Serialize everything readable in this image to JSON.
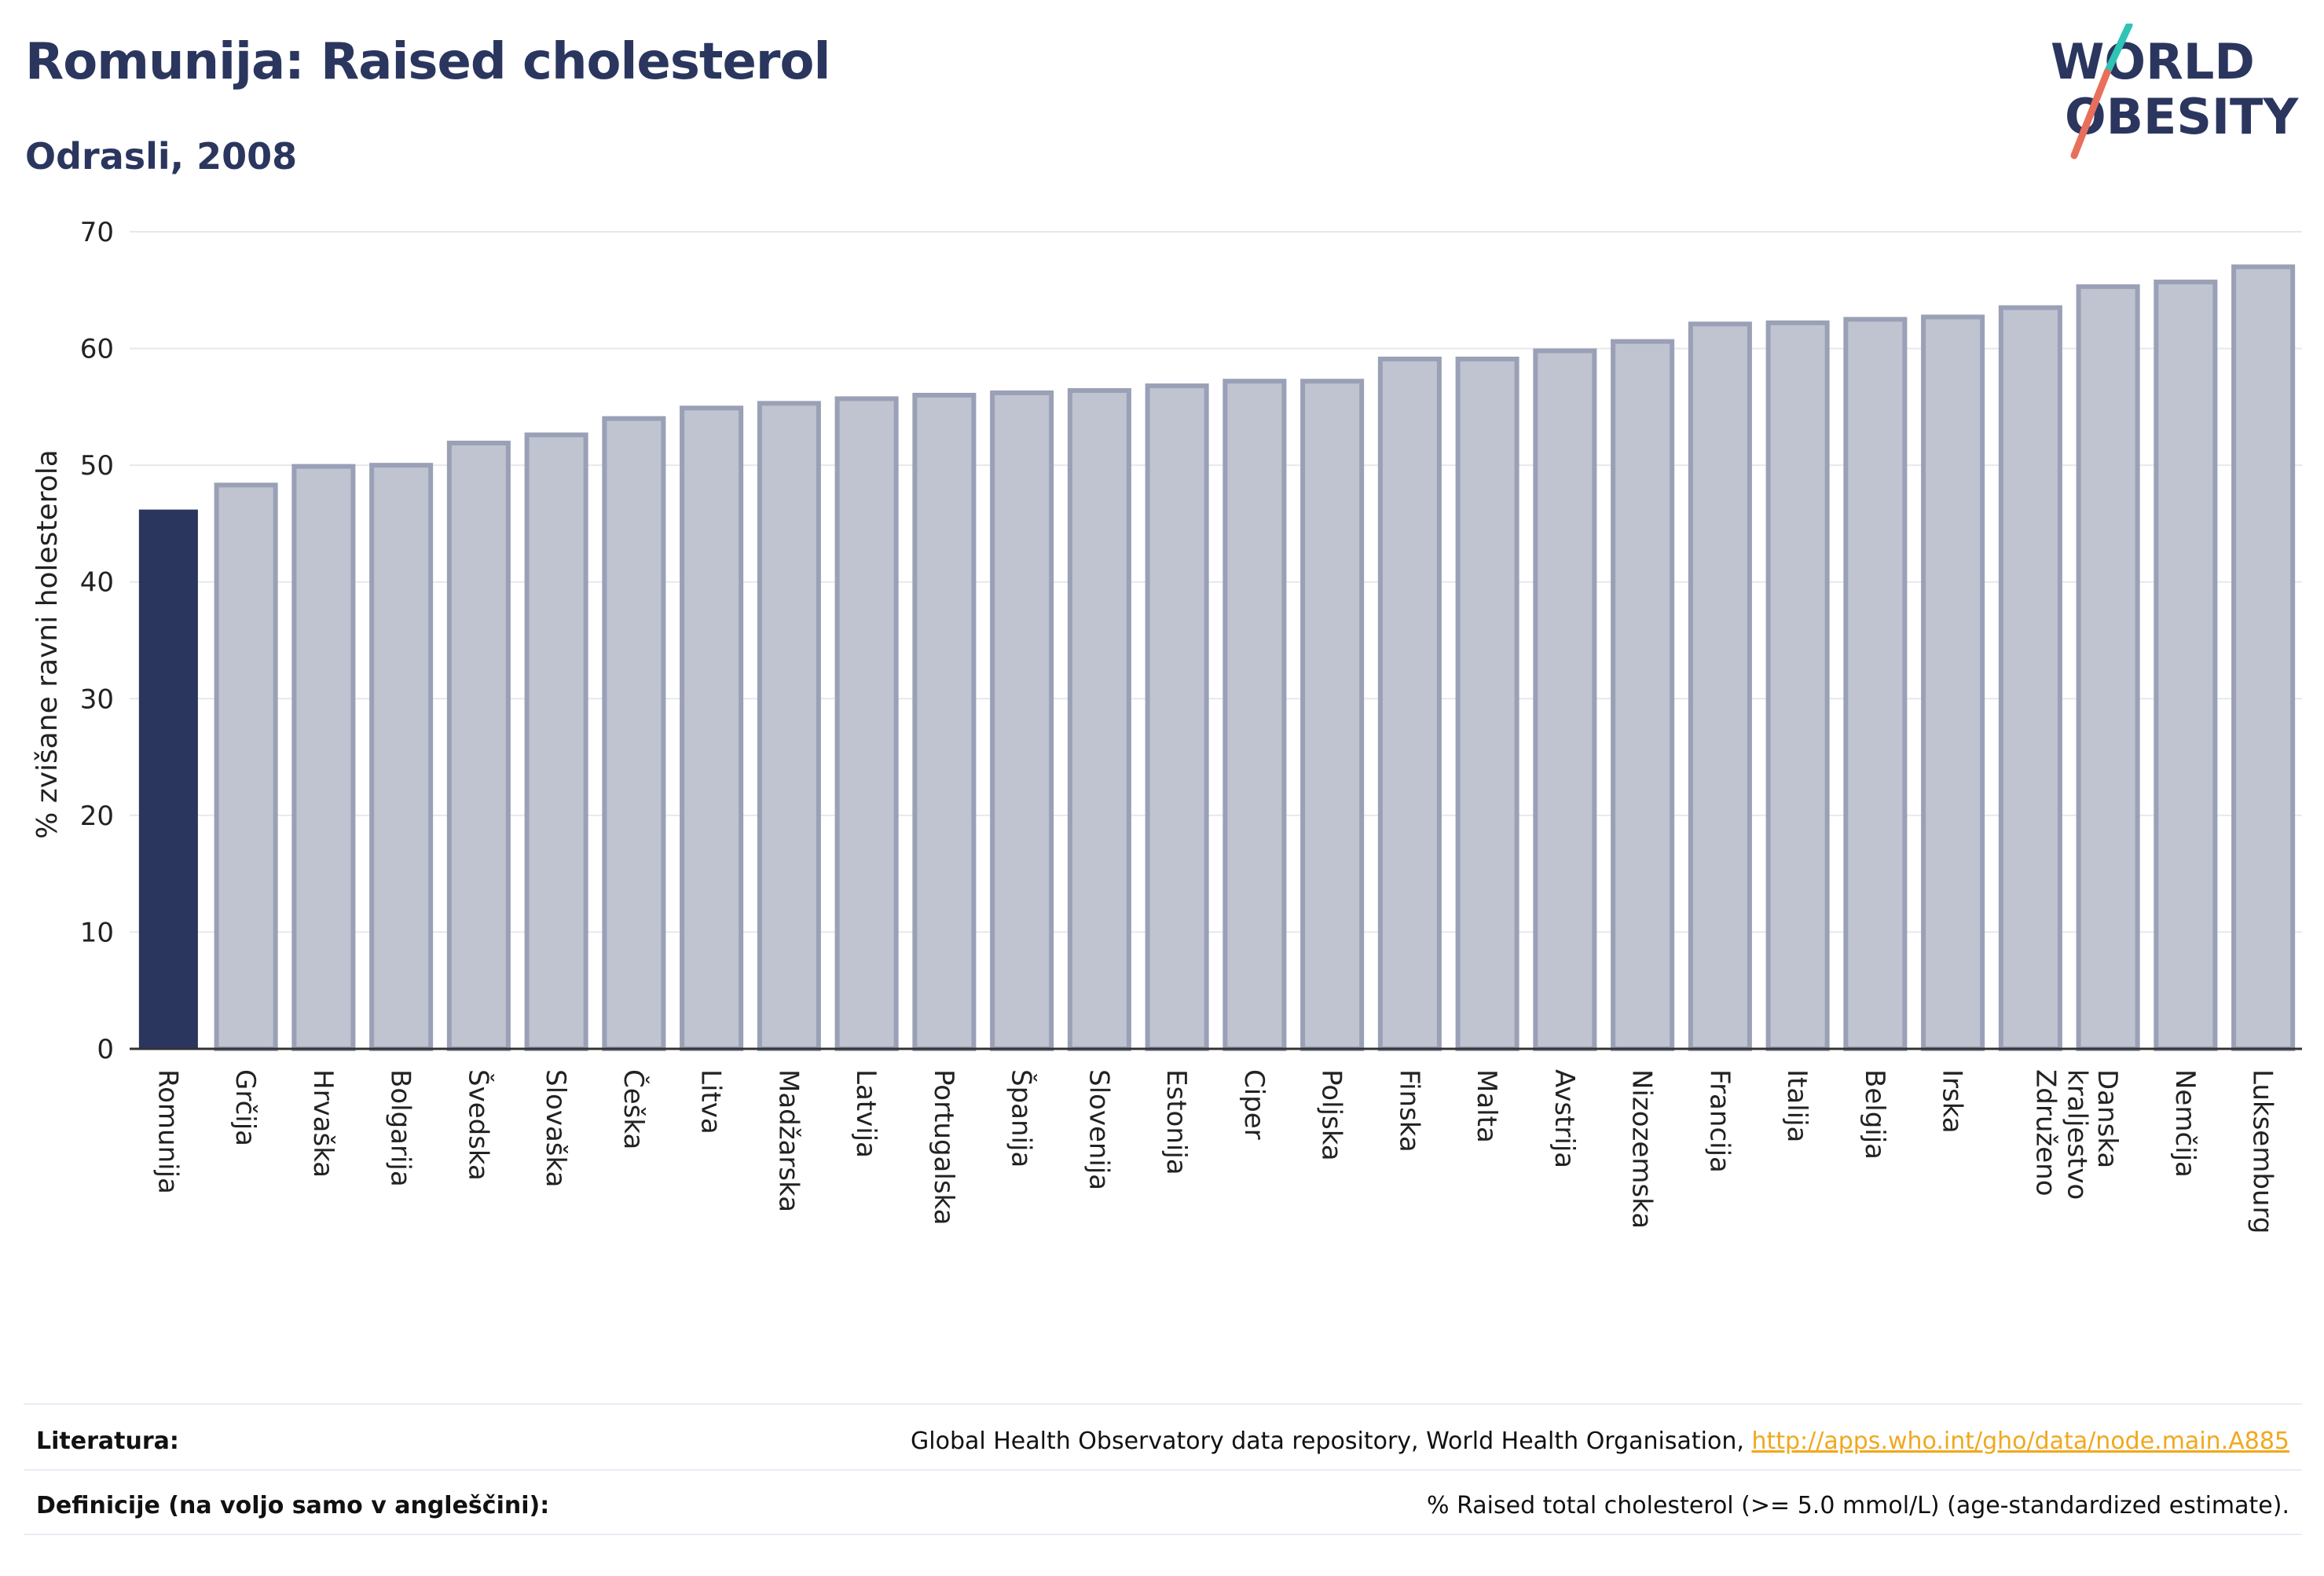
{
  "header": {
    "title": "Romunija: Raised cholesterol",
    "subtitle": "Odrasli, 2008"
  },
  "logo": {
    "line1": "WORLD",
    "line2": "OBESITY"
  },
  "chart_data": {
    "type": "bar",
    "title": "Romunija: Raised cholesterol",
    "subtitle": "Odrasli, 2008",
    "xlabel": "",
    "ylabel": "% zvišane ravni holesterola",
    "ylim": [
      0,
      70
    ],
    "yticks": [
      0,
      10,
      20,
      30,
      40,
      50,
      60,
      70
    ],
    "grid": true,
    "highlight_category": "Romunija",
    "colors": {
      "highlight": "#2b365f",
      "bar_fill": "#c0c4d1",
      "bar_stroke": "#9aa0b6",
      "grid": "#e6e8ef",
      "axis": "#333333"
    },
    "categories": [
      "Romunija",
      "Grčija",
      "Hrvaška",
      "Bolgarija",
      "Švedska",
      "Slovaška",
      "Češka",
      "Litva",
      "Madžarska",
      "Latvija",
      "Portugalska",
      "Španija",
      "Slovenija",
      "Estonija",
      "Ciper",
      "Poljska",
      "Finska",
      "Malta",
      "Avstrija",
      "Nizozemska",
      "Francija",
      "Italija",
      "Belgija",
      "Irska",
      "Združeno kraljestvo",
      "Danska",
      "Nemčija",
      "Luksemburg"
    ],
    "values": [
      46.2,
      48.3,
      49.9,
      50.0,
      51.9,
      52.6,
      54.0,
      54.9,
      55.3,
      55.7,
      56.0,
      56.2,
      56.4,
      56.8,
      57.2,
      57.2,
      59.1,
      59.1,
      59.8,
      60.6,
      62.1,
      62.2,
      62.5,
      62.7,
      63.5,
      65.3,
      65.7,
      67.0
    ]
  },
  "footer": {
    "literature_label": "Literatura:",
    "literature_text": "Global Health Observatory data repository, World Health Organisation, ",
    "literature_link": "http://apps.who.int/gho/data/node.main.A885",
    "definitions_label": "Definicije (na voljo samo v angleščini):",
    "definitions_text": "% Raised total cholesterol (>= 5.0 mmol/L) (age-standardized estimate)."
  }
}
